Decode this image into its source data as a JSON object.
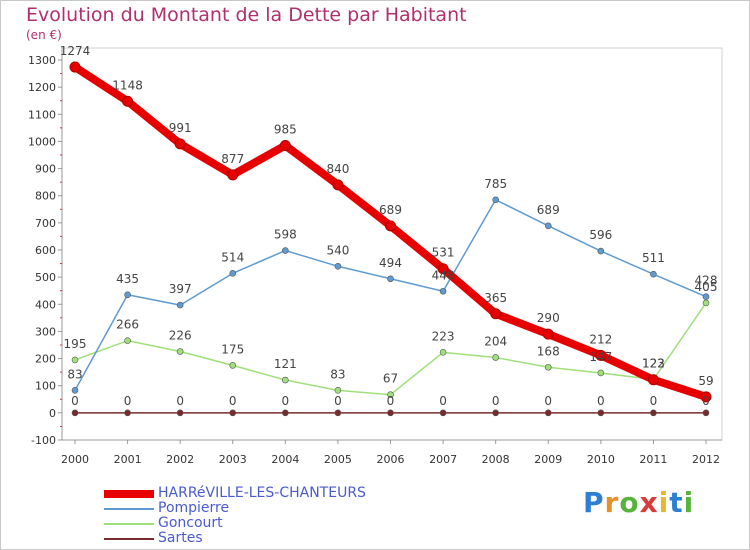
{
  "title": "Evolution du Montant de la Dette par Habitant",
  "unit": "(en €)",
  "brand": {
    "letters": [
      {
        "ch": "P",
        "color": "#2d7fd3"
      },
      {
        "ch": "r",
        "color": "#e7902a"
      },
      {
        "ch": "o",
        "color": "#58b33e"
      },
      {
        "ch": "x",
        "color": "#d93a3a"
      },
      {
        "ch": "i",
        "color": "#e7b82a"
      },
      {
        "ch": "t",
        "color": "#2d7fd3"
      },
      {
        "ch": "i",
        "color": "#58b33e"
      }
    ]
  },
  "chart_data": {
    "type": "line",
    "x": [
      "2000",
      "2001",
      "2002",
      "2003",
      "2004",
      "2005",
      "2006",
      "2007",
      "2008",
      "2009",
      "2010",
      "2011",
      "2012"
    ],
    "ylim": [
      -100,
      1300
    ],
    "yticks": [
      "-100",
      "0",
      "100",
      "200",
      "300",
      "400",
      "500",
      "600",
      "700",
      "800",
      "900",
      "1000",
      "1100",
      "1200",
      "1300"
    ],
    "grid": false,
    "legend_position": "bottom-left",
    "series": [
      {
        "name": "HARRéVILLE-LES-CHANTEURS",
        "color": "#e60000",
        "values": [
          1274,
          1148,
          991,
          877,
          985,
          840,
          689,
          531,
          365,
          290,
          212,
          122,
          59
        ],
        "labels": [
          "1274",
          "1148",
          "991",
          "877",
          "985",
          "840",
          "689",
          "531",
          "365",
          "290",
          "212",
          "122",
          "59"
        ]
      },
      {
        "name": "Pompierre",
        "color": "#5f9bd1",
        "values": [
          83,
          435,
          397,
          514,
          598,
          540,
          494,
          448,
          785,
          689,
          596,
          511,
          428
        ],
        "labels": [
          "83",
          "435",
          "397",
          "514",
          "598",
          "540",
          "494",
          "448",
          "785",
          "689",
          "596",
          "511",
          "428"
        ]
      },
      {
        "name": "Goncourt",
        "color": "#9fe07a",
        "values": [
          195,
          266,
          226,
          175,
          121,
          83,
          67,
          223,
          204,
          168,
          147,
          123,
          405
        ],
        "labels": [
          "195",
          "266",
          "226",
          "175",
          "121",
          "83",
          "67",
          "223",
          "204",
          "168",
          "147",
          "123",
          "405"
        ]
      },
      {
        "name": "Sartes",
        "color": "#7a2a2a",
        "values": [
          0,
          0,
          0,
          0,
          0,
          0,
          0,
          0,
          0,
          0,
          0,
          0,
          0
        ],
        "labels": [
          "0",
          "0",
          "0",
          "0",
          "0",
          "0",
          "0",
          "0",
          "0",
          "0",
          "0",
          "0",
          "0"
        ]
      }
    ]
  }
}
